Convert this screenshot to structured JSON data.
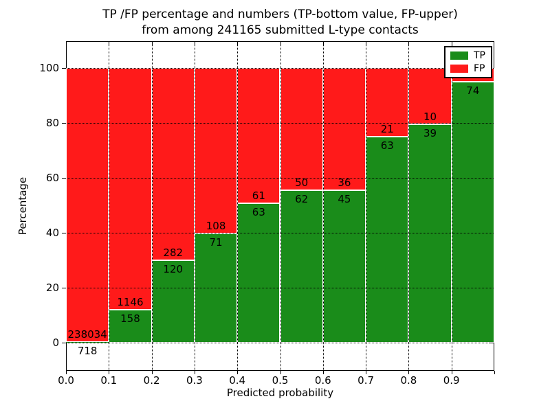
{
  "figure": {
    "title_line1": "TP /FP percentage and numbers (TP-bottom value, FP-upper)",
    "title_line2": "from among 241165 submitted L-type contacts",
    "xlabel": "Predicted probability",
    "ylabel": "Percentage"
  },
  "chart_data": {
    "type": "bar",
    "stacked": true,
    "normalized_to_percent": true,
    "total_submitted_contacts": 241165,
    "x_tick_labels": [
      "0.0",
      "0.1",
      "0.2",
      "0.3",
      "0.4",
      "0.5",
      "0.6",
      "0.7",
      "0.8",
      "0.9"
    ],
    "y_ticks": [
      0,
      20,
      40,
      60,
      80,
      100
    ],
    "y_tick_labels": [
      "0",
      "20",
      "40",
      "60",
      "80",
      "100"
    ],
    "xlim": [
      0.0,
      1.0
    ],
    "ylim": [
      -10,
      110
    ],
    "grid": true,
    "legend_position": "upper right",
    "legend": [
      {
        "label": "TP",
        "color": "#1a8c1a"
      },
      {
        "label": "FP",
        "color": "#ff1a1a"
      }
    ],
    "bars": [
      {
        "bin": "0.0-0.1",
        "tp": 718,
        "fp": 238034,
        "tp_label": "718",
        "fp_label": "238034",
        "tp_pct": 0.3
      },
      {
        "bin": "0.1-0.2",
        "tp": 158,
        "fp": 1146,
        "tp_label": "158",
        "fp_label": "1146",
        "tp_pct": 12.1
      },
      {
        "bin": "0.2-0.3",
        "tp": 120,
        "fp": 282,
        "tp_label": "120",
        "fp_label": "282",
        "tp_pct": 29.9
      },
      {
        "bin": "0.3-0.4",
        "tp": 71,
        "fp": 108,
        "tp_label": "71",
        "fp_label": "108",
        "tp_pct": 39.7
      },
      {
        "bin": "0.4-0.5",
        "tp": 63,
        "fp": 61,
        "tp_label": "63",
        "fp_label": "61",
        "tp_pct": 50.8
      },
      {
        "bin": "0.5-0.6",
        "tp": 62,
        "fp": 50,
        "tp_label": "62",
        "fp_label": "50",
        "tp_pct": 55.4
      },
      {
        "bin": "0.6-0.7",
        "tp": 45,
        "fp": 36,
        "tp_label": "45",
        "fp_label": "36",
        "tp_pct": 55.6
      },
      {
        "bin": "0.7-0.8",
        "tp": 63,
        "fp": 21,
        "tp_label": "63",
        "fp_label": "21",
        "tp_pct": 75.0
      },
      {
        "bin": "0.8-0.9",
        "tp": 39,
        "fp": 10,
        "tp_label": "39",
        "fp_label": "10",
        "tp_pct": 79.6
      },
      {
        "bin": "0.9-1.0",
        "tp": 74,
        "fp": null,
        "tp_label": "74",
        "fp_label": "",
        "tp_pct": 94.9
      }
    ]
  }
}
